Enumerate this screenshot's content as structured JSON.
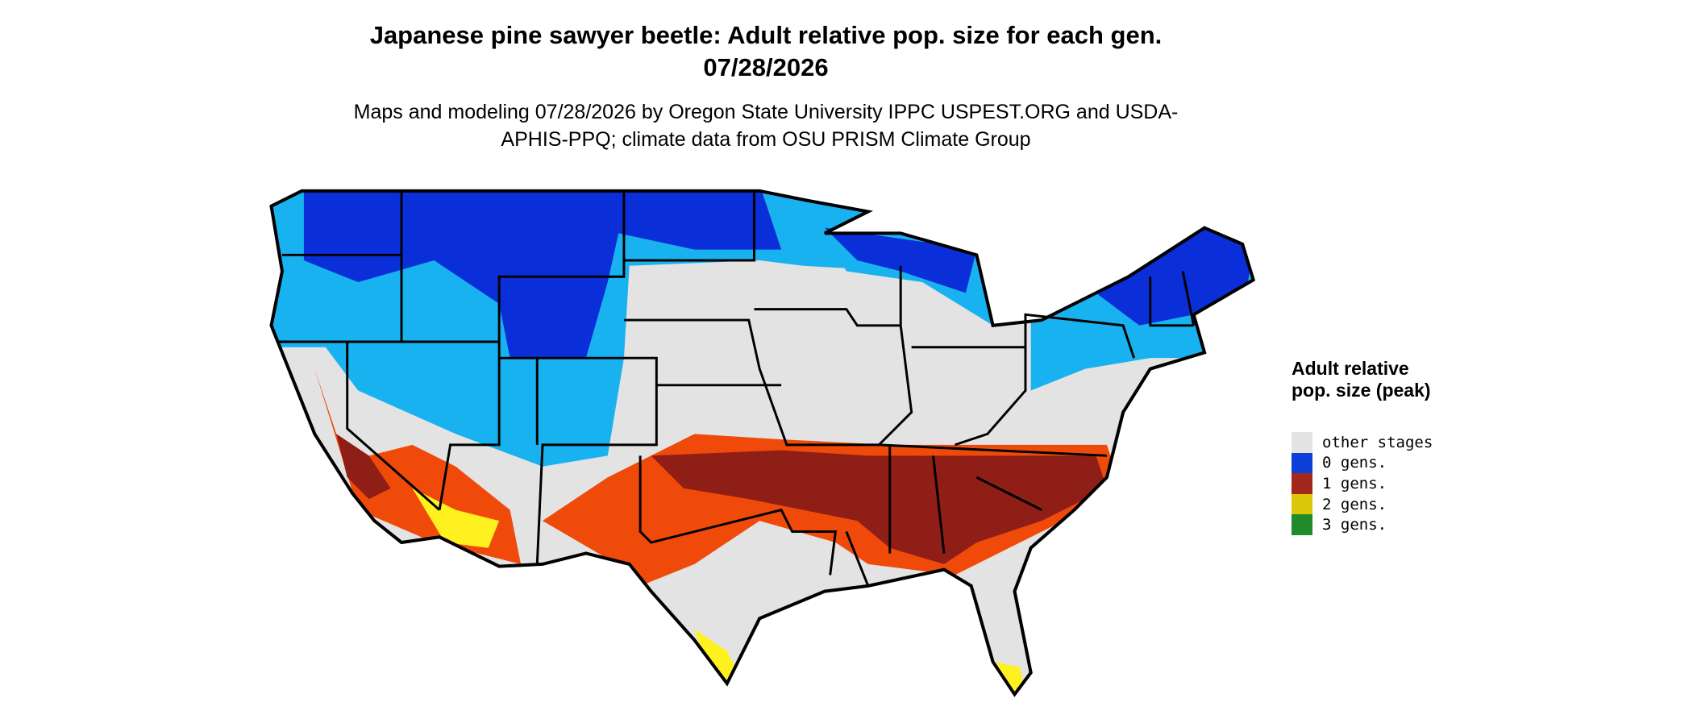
{
  "header": {
    "title": "Japanese pine sawyer beetle: Adult relative pop. size for each gen. 07/28/2026",
    "subtitle": "Maps and modeling 07/28/2026 by Oregon State University IPPC USPEST.ORG and USDA-APHIS-PPQ; climate data from OSU PRISM Climate Group"
  },
  "legend": {
    "title": "Adult relative pop. size (peak)",
    "items": [
      {
        "label": "other stages",
        "color": "#e3e3e3"
      },
      {
        "label": "0 gens.",
        "color": "#0a3fd8"
      },
      {
        "label": "1 gens.",
        "color": "#a3281c"
      },
      {
        "label": "2 gens.",
        "color": "#dcc80a"
      },
      {
        "label": "3 gens.",
        "color": "#218a2b"
      }
    ]
  }
}
